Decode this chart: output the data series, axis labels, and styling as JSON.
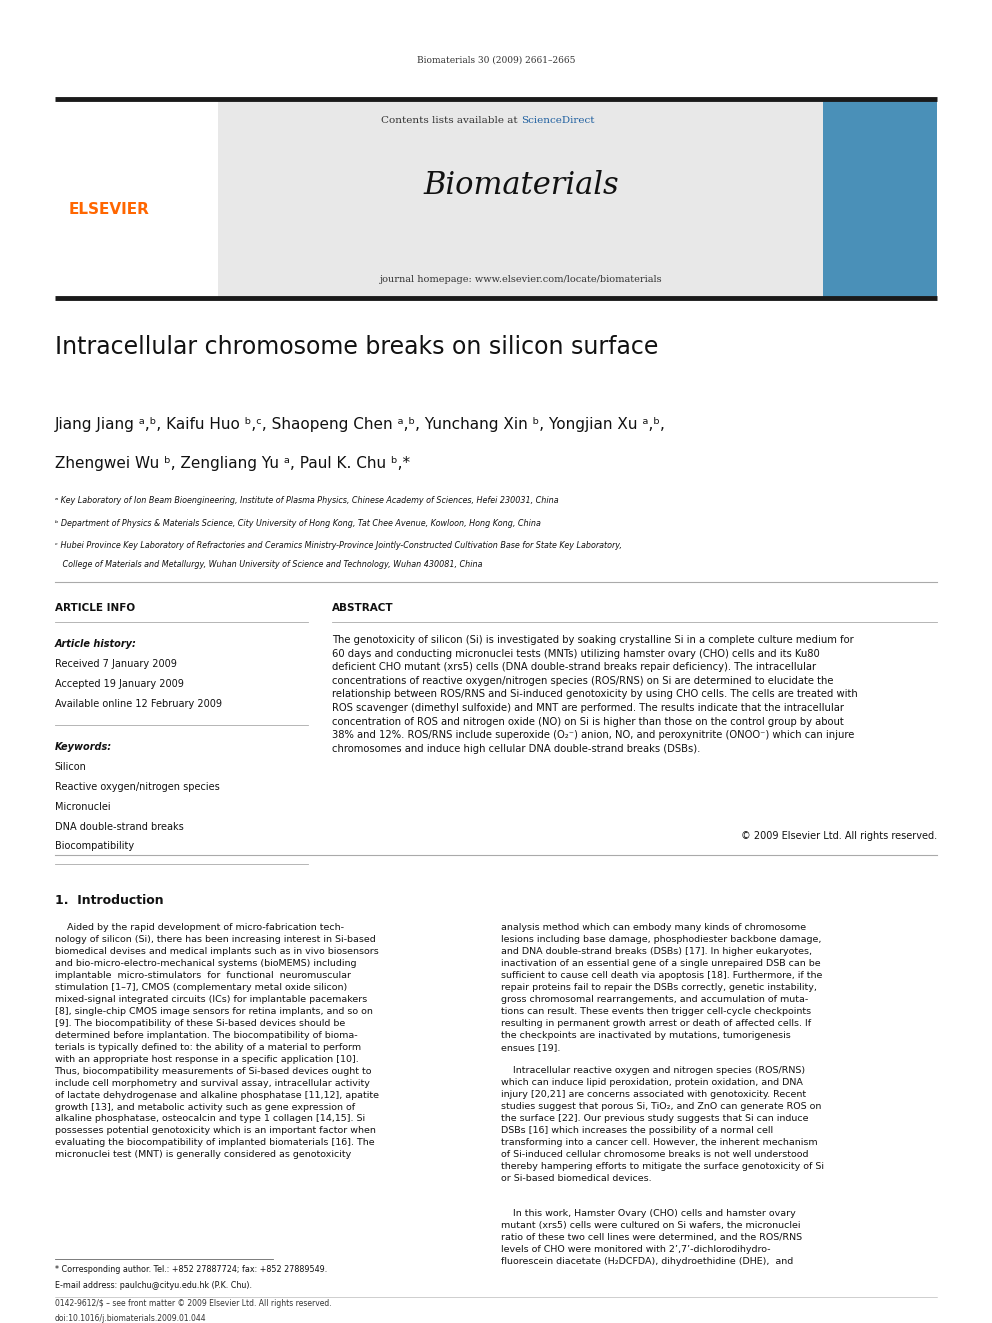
{
  "page_width": 9.92,
  "page_height": 13.23,
  "background_color": "#ffffff",
  "top_citation": "Biomaterials 30 (2009) 2661–2665",
  "journal_header_bg": "#e8e8e8",
  "sciencedirect_color": "#2060a0",
  "journal_name": "Biomaterials",
  "journal_url": "journal homepage: www.elsevier.com/locate/biomaterials",
  "elsevier_color": "#ff6600",
  "elsevier_text": "ELSEVIER",
  "thick_bar_color": "#1a1a1a",
  "article_title": "Intracellular chromosome breaks on silicon surface",
  "affil_a": "ᵃ Key Laboratory of Ion Beam Bioengineering, Institute of Plasma Physics, Chinese Academy of Sciences, Hefei 230031, China",
  "affil_b": "ᵇ Department of Physics & Materials Science, City University of Hong Kong, Tat Chee Avenue, Kowloon, Hong Kong, China",
  "affil_c1": "ᶜ Hubei Province Key Laboratory of Refractories and Ceramics Ministry-Province Jointly-Constructed Cultivation Base for State Key Laboratory,",
  "affil_c2": "   College of Materials and Metallurgy, Wuhan University of Science and Technology, Wuhan 430081, China",
  "section_article_info": "ARTICLE INFO",
  "section_abstract": "ABSTRACT",
  "article_history_label": "Article history:",
  "received": "Received 7 January 2009",
  "accepted": "Accepted 19 January 2009",
  "available": "Available online 12 February 2009",
  "keywords_label": "Keywords:",
  "keywords": [
    "Silicon",
    "Reactive oxygen/nitrogen species",
    "Micronuclei",
    "DNA double-strand breaks",
    "Biocompatibility"
  ],
  "abstract_text": "The genotoxicity of silicon (Si) is investigated by soaking crystalline Si in a complete culture medium for\n60 days and conducting micronuclei tests (MNTs) utilizing hamster ovary (CHO) cells and its Ku80\ndeficient CHO mutant (xrs5) cells (DNA double-strand breaks repair deficiency). The intracellular\nconcentrations of reactive oxygen/nitrogen species (ROS/RNS) on Si are determined to elucidate the\nrelationship between ROS/RNS and Si-induced genotoxicity by using CHO cells. The cells are treated with\nROS scavenger (dimethyl sulfoxide) and MNT are performed. The results indicate that the intracellular\nconcentration of ROS and nitrogen oxide (NO) on Si is higher than those on the control group by about\n38% and 12%. ROS/RNS include superoxide (O₂⁻) anion, NO, and peroxynitrite (ONOO⁻) which can injure\nchromosomes and induce high cellular DNA double-strand breaks (DSBs).",
  "copyright_line": "© 2009 Elsevier Ltd. All rights reserved.",
  "intro_heading": "1.  Introduction",
  "intro_col1": "    Aided by the rapid development of micro-fabrication tech-\nnology of silicon (Si), there has been increasing interest in Si-based\nbiomedical devises and medical implants such as in vivo biosensors\nand bio-micro-electro-mechanical systems (bioMEMS) including\nimplantable  micro-stimulators  for  functional  neuromuscular\nstimulation [1–7], CMOS (complementary metal oxide silicon)\nmixed-signal integrated circuits (ICs) for implantable pacemakers\n[8], single-chip CMOS image sensors for retina implants, and so on\n[9]. The biocompatibility of these Si-based devices should be\ndetermined before implantation. The biocompatibility of bioma-\nterials is typically defined to: the ability of a material to perform\nwith an appropriate host response in a specific application [10].\nThus, biocompatibility measurements of Si-based devices ought to\ninclude cell morphometry and survival assay, intracellular activity\nof lactate dehydrogenase and alkaline phosphatase [11,12], apatite\ngrowth [13], and metabolic activity such as gene expression of\nalkaline phosphatase, osteocalcin and type 1 collagen [14,15]. Si\npossesses potential genotoxicity which is an important factor when\nevaluating the biocompatibility of implanted biomaterials [16]. The\nmicronuclei test (MNT) is generally considered as genotoxicity",
  "intro_col2_part1": "analysis method which can embody many kinds of chromosome\nlesions including base damage, phosphodiester backbone damage,\nand DNA double-strand breaks (DSBs) [17]. In higher eukaryotes,\ninactivation of an essential gene of a single unrepaired DSB can be\nsufficient to cause cell death via apoptosis [18]. Furthermore, if the\nrepair proteins fail to repair the DSBs correctly, genetic instability,\ngross chromosomal rearrangements, and accumulation of muta-\ntions can result. These events then trigger cell-cycle checkpoints\nresulting in permanent growth arrest or death of affected cells. If\nthe checkpoints are inactivated by mutations, tumorigenesis\nensues [19].",
  "intro_col2_part2": "    Intracellular reactive oxygen and nitrogen species (ROS/RNS)\nwhich can induce lipid peroxidation, protein oxidation, and DNA\ninjury [20,21] are concerns associated with genotoxicity. Recent\nstudies suggest that porous Si, TiO₂, and ZnO can generate ROS on\nthe surface [22]. Our previous study suggests that Si can induce\nDSBs [16] which increases the possibility of a normal cell\ntransforming into a cancer cell. However, the inherent mechanism\nof Si-induced cellular chromosome breaks is not well understood\nthereby hampering efforts to mitigate the surface genotoxicity of Si\nor Si-based biomedical devices.",
  "intro_col2_part3": "    In this work, Hamster Ovary (CHO) cells and hamster ovary\nmutant (xrs5) cells were cultured on Si wafers, the micronuclei\nratio of these two cell lines were determined, and the ROS/RNS\nlevels of CHO were monitored with 2’,7’-dichlorodihydro-\nfluorescein diacetate (H₂DCFDA), dihydroethidine (DHE),  and",
  "footnote_star": "* Corresponding author. Tel.: +852 27887724; fax: +852 27889549.",
  "footnote_email": "E-mail address: paulchu@cityu.edu.hk (P.K. Chu).",
  "footnote_issn": "0142-9612/$ – see front matter © 2009 Elsevier Ltd. All rights reserved.",
  "footnote_doi": "doi:10.1016/j.biomaterials.2009.01.044"
}
